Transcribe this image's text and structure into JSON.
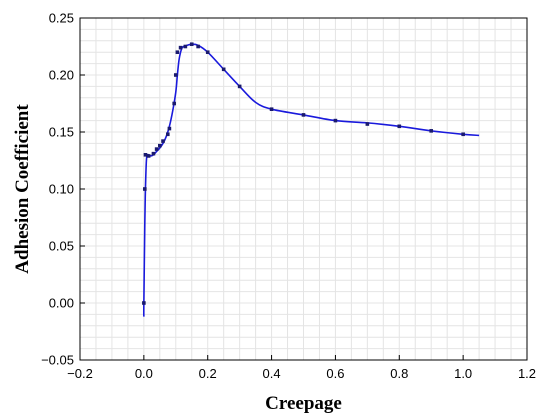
{
  "chart_data": {
    "type": "line",
    "xlabel": "Creepage",
    "ylabel": "Adhesion Coefficient",
    "xlim": [
      -0.2,
      1.2
    ],
    "ylim": [
      -0.05,
      0.25
    ],
    "xticks": [
      -0.2,
      0.0,
      0.2,
      0.4,
      0.6,
      0.8,
      1.0,
      1.2
    ],
    "yticks": [
      -0.05,
      0.0,
      0.05,
      0.1,
      0.15,
      0.2,
      0.25
    ],
    "xtick_labels": [
      "−0.2",
      "0.0",
      "0.2",
      "0.4",
      "0.6",
      "0.8",
      "1.0",
      "1.2"
    ],
    "ytick_labels": [
      "−0.05",
      "0.00",
      "0.05",
      "0.10",
      "0.15",
      "0.20",
      "0.25"
    ],
    "grid": true,
    "line_color": "#1a1adc",
    "marker_color": "#1a1a6e",
    "line": {
      "x": [
        0.0,
        0.0,
        0.003,
        0.005,
        0.008,
        0.012,
        0.02,
        0.03,
        0.04,
        0.05,
        0.06,
        0.07,
        0.08,
        0.09,
        0.1,
        0.105,
        0.11,
        0.115,
        0.12,
        0.125,
        0.135,
        0.15,
        0.17,
        0.2,
        0.25,
        0.3,
        0.35,
        0.4,
        0.5,
        0.6,
        0.7,
        0.8,
        0.9,
        1.0,
        1.05
      ],
      "y": [
        -0.012,
        0.0,
        0.07,
        0.1,
        0.125,
        0.13,
        0.129,
        0.13,
        0.133,
        0.136,
        0.14,
        0.146,
        0.155,
        0.168,
        0.185,
        0.2,
        0.213,
        0.22,
        0.224,
        0.225,
        0.226,
        0.227,
        0.226,
        0.22,
        0.205,
        0.19,
        0.176,
        0.17,
        0.165,
        0.16,
        0.158,
        0.155,
        0.151,
        0.148,
        0.147
      ]
    },
    "points": {
      "x": [
        0.0,
        0.003,
        0.005,
        0.015,
        0.03,
        0.04,
        0.05,
        0.06,
        0.075,
        0.08,
        0.095,
        0.1,
        0.105,
        0.115,
        0.13,
        0.15,
        0.17,
        0.2,
        0.25,
        0.3,
        0.4,
        0.5,
        0.6,
        0.7,
        0.8,
        0.9,
        1.0
      ],
      "y": [
        0.0,
        0.1,
        0.13,
        0.129,
        0.131,
        0.135,
        0.138,
        0.142,
        0.148,
        0.153,
        0.175,
        0.2,
        0.22,
        0.224,
        0.225,
        0.227,
        0.225,
        0.22,
        0.205,
        0.19,
        0.17,
        0.165,
        0.16,
        0.157,
        0.155,
        0.151,
        0.148
      ]
    }
  }
}
